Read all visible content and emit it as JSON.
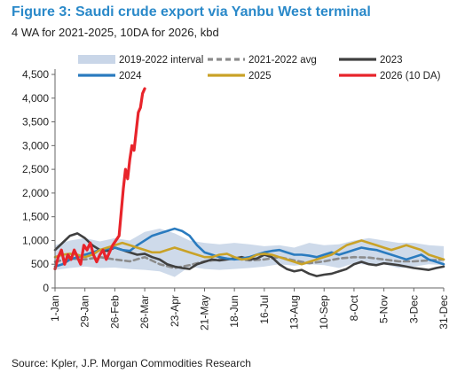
{
  "header": {
    "title": "Figure 3: Saudi crude export via Yanbu West terminal",
    "subtitle": "4 WA for 2021-2025, 10DA for 2026, kbd"
  },
  "footer": {
    "source": "Source: Kpler, J.P. Morgan Commodities Research"
  },
  "chart_data": {
    "type": "line",
    "title": "Figure 3: Saudi crude export via Yanbu West terminal",
    "subtitle": "4 WA for 2021-2025, 10DA for 2026, kbd",
    "xlabel": "",
    "ylabel": "",
    "ylim": [
      0,
      4500
    ],
    "yticks": [
      0,
      500,
      1000,
      1500,
      2000,
      2500,
      3000,
      3500,
      4000,
      4500
    ],
    "ytick_labels": [
      "0",
      "500",
      "1,000",
      "1,500",
      "2,000",
      "2,500",
      "3,000",
      "3,500",
      "4,000",
      "4,500"
    ],
    "x_tick_labels": [
      "1-Jan",
      "29-Jan",
      "26-Feb",
      "26-Mar",
      "23-Apr",
      "21-May",
      "18-Jun",
      "16-Jul",
      "13-Aug",
      "10-Sep",
      "8-Oct",
      "5-Nov",
      "3-Dec",
      "31-Dec"
    ],
    "x_tick_days": [
      1,
      29,
      57,
      85,
      113,
      141,
      169,
      197,
      225,
      253,
      281,
      309,
      337,
      365
    ],
    "xlim": [
      1,
      365
    ],
    "grid": false,
    "legend_position": "top",
    "band": {
      "name": "2019-2022 interval",
      "color": "#c9d6e8",
      "x": [
        1,
        15,
        29,
        43,
        57,
        71,
        85,
        99,
        113,
        127,
        141,
        155,
        169,
        183,
        197,
        211,
        225,
        239,
        253,
        267,
        281,
        295,
        309,
        323,
        337,
        351,
        365
      ],
      "low": [
        380,
        420,
        450,
        420,
        430,
        400,
        380,
        350,
        230,
        450,
        400,
        380,
        400,
        420,
        450,
        500,
        470,
        500,
        480,
        420,
        520,
        480,
        500,
        420,
        450,
        500,
        480
      ],
      "high": [
        900,
        1000,
        1050,
        980,
        1050,
        1000,
        1180,
        1250,
        1150,
        1000,
        950,
        920,
        950,
        920,
        880,
        900,
        850,
        950,
        900,
        920,
        1000,
        1050,
        1000,
        950,
        950,
        900,
        880
      ]
    },
    "series": [
      {
        "name": "2021-2022 avg",
        "color": "#8c8c8c",
        "dash": "6,4",
        "x": [
          1,
          15,
          29,
          43,
          57,
          71,
          85,
          99,
          113,
          127,
          141,
          155,
          169,
          183,
          197,
          211,
          225,
          239,
          253,
          267,
          281,
          295,
          309,
          323,
          337,
          351,
          365
        ],
        "y": [
          550,
          620,
          600,
          650,
          600,
          560,
          650,
          500,
          420,
          480,
          560,
          600,
          620,
          580,
          600,
          650,
          580,
          520,
          560,
          620,
          650,
          640,
          600,
          560,
          560,
          580,
          600
        ]
      },
      {
        "name": "2023",
        "color": "#404040",
        "x": [
          1,
          8,
          15,
          22,
          29,
          36,
          43,
          50,
          57,
          64,
          71,
          78,
          85,
          92,
          99,
          106,
          113,
          120,
          127,
          134,
          141,
          148,
          155,
          162,
          169,
          176,
          183,
          190,
          197,
          204,
          211,
          218,
          225,
          232,
          239,
          246,
          253,
          260,
          267,
          274,
          281,
          288,
          295,
          302,
          309,
          316,
          323,
          330,
          337,
          344,
          351,
          358,
          365
        ],
        "y": [
          800,
          950,
          1100,
          1150,
          1050,
          900,
          800,
          780,
          850,
          800,
          750,
          700,
          720,
          650,
          600,
          500,
          450,
          420,
          400,
          500,
          550,
          600,
          580,
          600,
          620,
          650,
          600,
          620,
          700,
          650,
          500,
          400,
          350,
          380,
          300,
          250,
          280,
          300,
          350,
          400,
          500,
          550,
          500,
          480,
          520,
          500,
          480,
          450,
          420,
          400,
          380,
          420,
          450
        ]
      },
      {
        "name": "2024",
        "color": "#2a7bbf",
        "x": [
          1,
          8,
          15,
          22,
          29,
          36,
          43,
          50,
          57,
          64,
          71,
          78,
          85,
          92,
          99,
          106,
          113,
          120,
          127,
          134,
          141,
          148,
          155,
          162,
          169,
          176,
          183,
          190,
          197,
          204,
          211,
          218,
          225,
          232,
          239,
          246,
          253,
          260,
          267,
          274,
          281,
          288,
          295,
          302,
          309,
          316,
          323,
          330,
          337,
          344,
          351,
          358,
          365
        ],
        "y": [
          450,
          500,
          600,
          650,
          700,
          750,
          800,
          820,
          850,
          800,
          780,
          900,
          1000,
          1100,
          1150,
          1200,
          1250,
          1200,
          1100,
          900,
          750,
          700,
          650,
          620,
          600,
          620,
          650,
          700,
          750,
          780,
          800,
          750,
          700,
          700,
          680,
          650,
          700,
          750,
          700,
          750,
          800,
          850,
          820,
          800,
          750,
          700,
          650,
          600,
          650,
          700,
          600,
          550,
          500
        ]
      },
      {
        "name": "2025",
        "color": "#c9a227",
        "x": [
          1,
          8,
          15,
          22,
          29,
          36,
          43,
          50,
          57,
          64,
          71,
          78,
          85,
          92,
          99,
          106,
          113,
          120,
          127,
          134,
          141,
          148,
          155,
          162,
          169,
          176,
          183,
          190,
          197,
          204,
          211,
          218,
          225,
          232,
          239,
          246,
          253,
          260,
          267,
          274,
          281,
          288,
          295,
          302,
          309,
          316,
          323,
          330,
          337,
          344,
          351,
          358,
          365
        ],
        "y": [
          650,
          700,
          720,
          700,
          650,
          700,
          800,
          850,
          900,
          950,
          900,
          850,
          800,
          750,
          750,
          800,
          850,
          800,
          750,
          700,
          650,
          650,
          700,
          720,
          650,
          600,
          620,
          700,
          720,
          700,
          650,
          600,
          550,
          500,
          550,
          600,
          650,
          700,
          800,
          900,
          950,
          1000,
          950,
          900,
          850,
          800,
          850,
          900,
          850,
          800,
          700,
          650,
          600
        ]
      },
      {
        "name": "2026 (10 DA)",
        "color": "#e8242b",
        "x": [
          1,
          4,
          7,
          10,
          13,
          16,
          19,
          22,
          25,
          28,
          31,
          34,
          37,
          40,
          43,
          46,
          49,
          52,
          55,
          58,
          61,
          63,
          65,
          67,
          69,
          71,
          73,
          75,
          77,
          79,
          81,
          83,
          85
        ],
        "y": [
          400,
          650,
          800,
          500,
          700,
          600,
          800,
          650,
          500,
          900,
          800,
          950,
          700,
          550,
          700,
          800,
          600,
          750,
          900,
          1000,
          1100,
          1600,
          2100,
          2500,
          2300,
          2700,
          3000,
          2900,
          3300,
          3700,
          3800,
          4100,
          4200
        ]
      }
    ]
  }
}
